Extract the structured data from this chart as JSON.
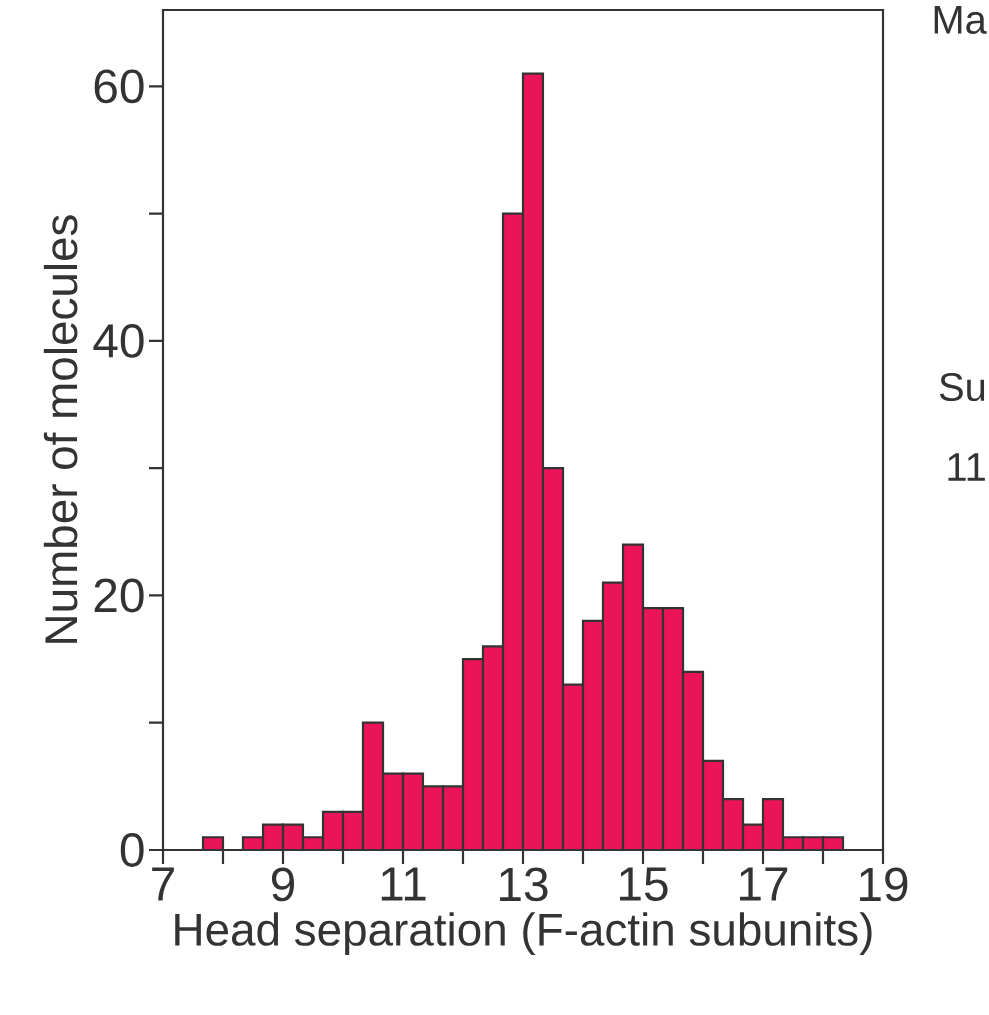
{
  "chart_data": {
    "type": "histogram",
    "xlabel": "Head separation (F-actin subunits)",
    "ylabel": "Number of molecules",
    "bins": [
      7,
      7.333,
      7.667,
      8,
      8.333,
      8.667,
      9,
      9.333,
      9.667,
      10,
      10.333,
      10.667,
      11,
      11.333,
      11.667,
      12,
      12.333,
      12.667,
      13,
      13.333,
      13.667,
      14,
      14.333,
      14.667,
      15,
      15.333,
      15.667,
      16,
      16.333,
      16.667,
      17,
      17.333,
      17.667,
      18,
      18.333,
      18.667,
      19
    ],
    "values": [
      0,
      0,
      1,
      0,
      1,
      2,
      2,
      1,
      3,
      3,
      10,
      6,
      6,
      5,
      5,
      15,
      16,
      50,
      61,
      30,
      13,
      18,
      21,
      24,
      19,
      19,
      14,
      7,
      4,
      2,
      4,
      1,
      1,
      1,
      0,
      0
    ],
    "color": "#ec1459",
    "xlim": [
      7,
      19
    ],
    "ylim": [
      0,
      66
    ],
    "xticks": [
      7,
      {
        "value": 8,
        "label": null
      },
      9,
      {
        "value": 10,
        "label": null
      },
      11,
      {
        "value": 12,
        "label": null
      },
      13,
      {
        "value": 14,
        "label": null
      },
      15,
      {
        "value": 16,
        "label": null
      },
      17,
      {
        "value": 18,
        "label": null
      },
      19
    ],
    "yticks": [
      0,
      {
        "value": 10,
        "label": null
      },
      20,
      {
        "value": 30,
        "label": null
      },
      40,
      {
        "value": 50,
        "label": null
      },
      60
    ],
    "annotations": [
      "Ma",
      "Su",
      "11"
    ]
  }
}
